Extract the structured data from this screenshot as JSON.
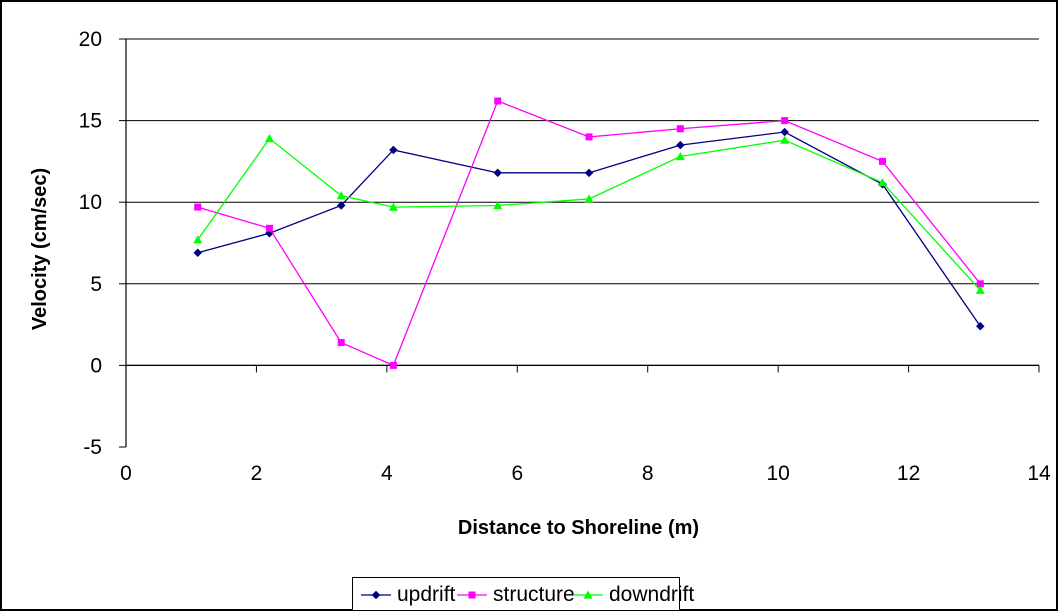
{
  "chart_data": {
    "type": "line",
    "title": "",
    "xlabel": "Distance to Shoreline (m)",
    "ylabel": "Velocity (cm/sec)",
    "xlim": [
      0,
      14
    ],
    "ylim": [
      -5,
      20
    ],
    "xticks": [
      0,
      2,
      4,
      6,
      8,
      10,
      12,
      14
    ],
    "yticks": [
      -5,
      0,
      5,
      10,
      15,
      20
    ],
    "grid": "horizontal",
    "legend_position": "bottom",
    "series": [
      {
        "name": "updrift",
        "color": "#000080",
        "marker": "diamond",
        "x": [
          1.1,
          2.2,
          3.3,
          4.1,
          5.7,
          7.1,
          8.5,
          10.1,
          11.6,
          13.1
        ],
        "y": [
          6.9,
          8.1,
          9.8,
          13.2,
          11.8,
          11.8,
          13.5,
          14.3,
          11.1,
          2.4
        ]
      },
      {
        "name": "structure",
        "color": "#FF00FF",
        "marker": "square",
        "x": [
          1.1,
          2.2,
          3.3,
          4.1,
          5.7,
          7.1,
          8.5,
          10.1,
          11.6,
          13.1
        ],
        "y": [
          9.7,
          8.4,
          1.4,
          0.0,
          16.2,
          14.0,
          14.5,
          15.0,
          12.5,
          5.0
        ]
      },
      {
        "name": "downdrift",
        "color": "#00FF00",
        "marker": "triangle",
        "x": [
          1.1,
          2.2,
          3.3,
          4.1,
          5.7,
          7.1,
          8.5,
          10.1,
          11.6,
          13.1
        ],
        "y": [
          7.7,
          13.9,
          10.4,
          9.7,
          9.8,
          10.2,
          12.8,
          13.8,
          11.2,
          4.6
        ]
      }
    ]
  }
}
